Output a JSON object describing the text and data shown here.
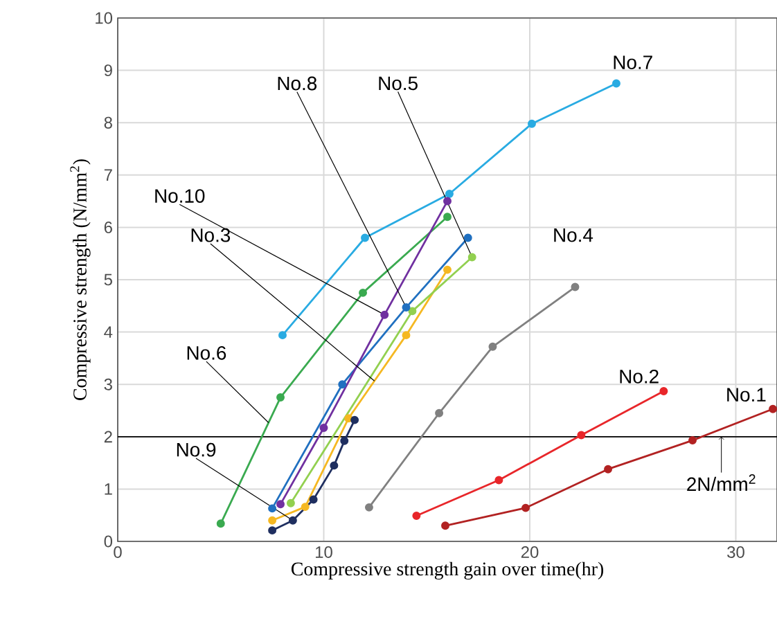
{
  "chart_data": {
    "type": "line",
    "xlabel": "Compressive strength gain over time(hr)",
    "ylabel": "Compressive strength (N/mm$^{2}$)",
    "xlim": [
      0,
      32
    ],
    "ylim": [
      0,
      10
    ],
    "xticks": [
      0,
      10,
      20,
      30
    ],
    "yticks": [
      0,
      1,
      2,
      3,
      4,
      5,
      6,
      7,
      8,
      9,
      10
    ],
    "grid": true,
    "marker": "circle",
    "line_style": "solid",
    "series": [
      {
        "name": "No.1",
        "color": "#b22222",
        "x": [
          15.9,
          19.8,
          23.8,
          27.9,
          31.8
        ],
        "values": [
          0.3,
          0.64,
          1.38,
          1.93,
          2.53
        ]
      },
      {
        "name": "No.2",
        "color": "#e8262a",
        "x": [
          14.5,
          18.5,
          22.5,
          26.5
        ],
        "values": [
          0.49,
          1.17,
          2.03,
          2.87
        ]
      },
      {
        "name": "No.3",
        "color": "#f5b822",
        "x": [
          7.5,
          9.1,
          11.2,
          14.0,
          16.0
        ],
        "values": [
          0.4,
          0.66,
          2.35,
          3.94,
          5.19
        ]
      },
      {
        "name": "No.4",
        "color": "#808080",
        "x": [
          12.2,
          15.6,
          18.2,
          22.2
        ],
        "values": [
          0.65,
          2.45,
          3.72,
          4.86
        ]
      },
      {
        "name": "No.5",
        "color": "#92d050",
        "x": [
          8.4,
          14.3,
          17.2
        ],
        "values": [
          0.73,
          4.4,
          5.43
        ]
      },
      {
        "name": "No.6",
        "color": "#3aaa50",
        "x": [
          5.0,
          7.9,
          11.9,
          16.0
        ],
        "values": [
          0.34,
          2.75,
          4.75,
          6.2
        ]
      },
      {
        "name": "No.7",
        "color": "#29abe2",
        "x": [
          8.0,
          12.0,
          16.1,
          20.1,
          24.2
        ],
        "values": [
          3.94,
          5.8,
          6.64,
          7.98,
          8.75
        ]
      },
      {
        "name": "No.8",
        "color": "#2070c0",
        "x": [
          7.5,
          10.9,
          14.0,
          17.0
        ],
        "values": [
          0.63,
          3.0,
          4.47,
          5.8
        ]
      },
      {
        "name": "No.9",
        "color": "#1f2f60",
        "x": [
          7.5,
          8.5,
          9.5,
          10.5,
          11.0,
          11.5
        ],
        "values": [
          0.21,
          0.4,
          0.8,
          1.45,
          1.92,
          2.32
        ]
      },
      {
        "name": "No.10",
        "color": "#7030a0",
        "x": [
          7.9,
          10.0,
          12.95,
          16.0
        ],
        "values": [
          0.71,
          2.17,
          4.33,
          6.5
        ]
      }
    ],
    "ref_lines": [
      {
        "axis": "y",
        "value": 2,
        "color": "#000000"
      }
    ],
    "annotations": [
      {
        "text": "2N/mm$^{2}$",
        "x": 29.3,
        "y": 2
      }
    ]
  }
}
